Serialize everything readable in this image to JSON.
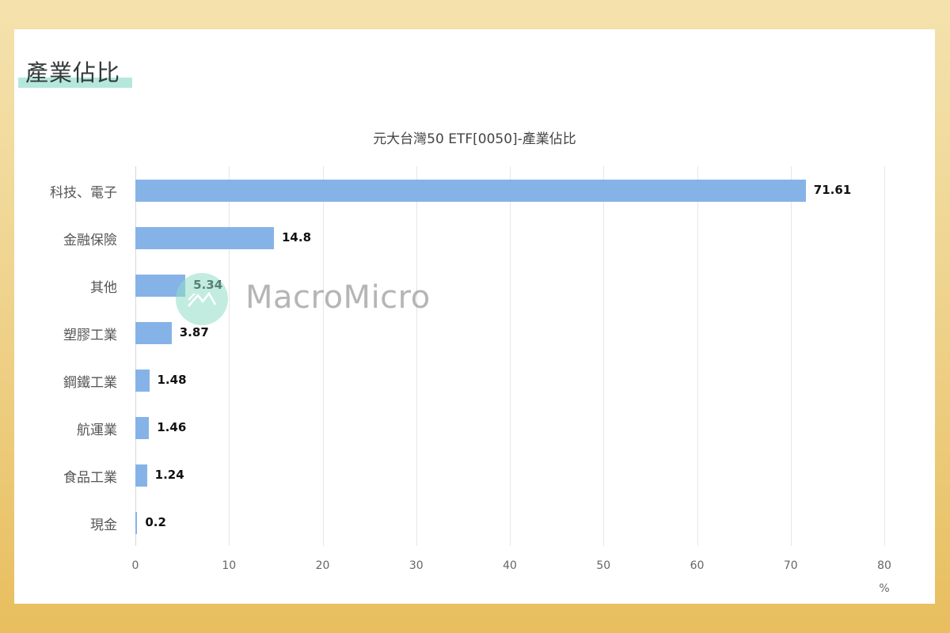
{
  "section": {
    "title": "產業佔比"
  },
  "watermark": {
    "text": "MacroMicro"
  },
  "colors": {
    "bar": "#86b3e7",
    "frame_top": "#f4e2ad",
    "frame_bottom": "#e8be5e",
    "title_highlight": "#b5e8dd"
  },
  "chart_data": {
    "type": "bar",
    "orientation": "horizontal",
    "title": "元大台灣50 ETF[0050]-產業佔比",
    "xlabel": "%",
    "ylabel": "",
    "xlim": [
      0,
      80
    ],
    "grid": true,
    "legend": null,
    "categories": [
      "科技、電子",
      "金融保險",
      "其他",
      "塑膠工業",
      "鋼鐵工業",
      "航運業",
      "食品工業",
      "現金"
    ],
    "values": [
      71.61,
      14.8,
      5.34,
      3.87,
      1.48,
      1.46,
      1.24,
      0.2
    ],
    "value_labels": [
      "71.61",
      "14.8",
      "5.34",
      "3.87",
      "1.48",
      "1.46",
      "1.24",
      "0.2"
    ],
    "x_ticks": [
      "0",
      "10",
      "20",
      "30",
      "40",
      "50",
      "60",
      "70",
      "80"
    ]
  }
}
